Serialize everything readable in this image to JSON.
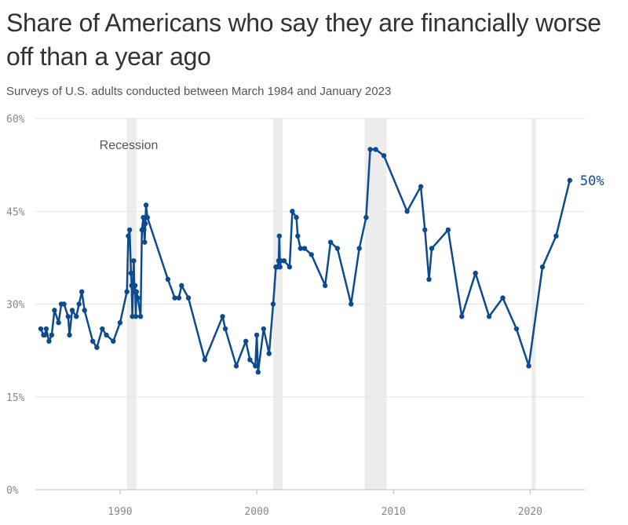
{
  "header": {
    "title": "Share of Americans who say they are financially worse off than a year ago",
    "subtitle": "Surveys of U.S. adults conducted between March 1984 and January 2023"
  },
  "chart_data": {
    "type": "line",
    "title": "Share of Americans who say they are financially worse off than a year ago",
    "subtitle": "Surveys of U.S. adults conducted between March 1984 and January 2023",
    "xlim": [
      1983.8,
      2024.0
    ],
    "ylim": [
      0,
      60
    ],
    "y_ticks": [
      0,
      15,
      30,
      45,
      60
    ],
    "y_tick_labels": [
      "0%",
      "15%",
      "30%",
      "45%",
      "60%"
    ],
    "x_ticks": [
      1990,
      2000,
      2010,
      2020
    ],
    "x_tick_labels": [
      "1990",
      "2000",
      "2010",
      "2020"
    ],
    "grid": true,
    "line_color": "#0d4a8f",
    "recession_color": "#ececec",
    "recession_label": "Recession",
    "recessions": [
      [
        1990.5,
        1991.2
      ],
      [
        2001.2,
        2001.9
      ],
      [
        2007.9,
        2009.5
      ],
      [
        2020.1,
        2020.4
      ]
    ],
    "end_label": "50%",
    "series": [
      {
        "x": [
          1984.2,
          1984.4,
          1984.5,
          1984.6,
          1984.8,
          1985.0,
          1985.2,
          1985.5,
          1985.7,
          1985.9,
          1986.2,
          1986.3,
          1986.5,
          1986.8,
          1987.0,
          1987.2,
          1987.4,
          1988.0,
          1988.3,
          1988.7,
          1989.0,
          1989.5,
          1990.0,
          1990.5,
          1990.6,
          1990.7,
          1990.8,
          1990.85,
          1990.9,
          1991.0,
          1991.05,
          1991.1,
          1991.15,
          1991.2,
          1991.3,
          1991.5,
          1991.6,
          1991.7,
          1991.75,
          1991.8,
          1991.85,
          1991.9,
          1992.0,
          1993.5,
          1994.0,
          1994.3,
          1994.5,
          1995.0,
          1996.2,
          1997.5,
          1997.7,
          1998.5,
          1999.2,
          1999.5,
          1999.9,
          2000.0,
          2000.1,
          2000.5,
          2000.9,
          2001.2,
          2001.4,
          2001.5,
          2001.6,
          2001.65,
          2001.7,
          2001.75,
          2002.0,
          2002.4,
          2002.6,
          2002.9,
          2003.0,
          2003.2,
          2003.5,
          2004.0,
          2005.0,
          2005.4,
          2005.9,
          2006.9,
          2007.5,
          2008.0,
          2008.3,
          2008.7,
          2009.3,
          2011.0,
          2012.0,
          2012.3,
          2012.6,
          2012.8,
          2014.0,
          2015.0,
          2016.0,
          2017.0,
          2018.0,
          2019.0,
          2019.9,
          2020.9,
          2021.9,
          2022.9
        ],
        "y": [
          26,
          25,
          25,
          26,
          24,
          25,
          29,
          27,
          30,
          30,
          28,
          25,
          29,
          28,
          30,
          32,
          29,
          24,
          23,
          26,
          25,
          24,
          27,
          32,
          41,
          42,
          35,
          33,
          28,
          37,
          32,
          33,
          28,
          32,
          31,
          28,
          42,
          44,
          42,
          40,
          43,
          46,
          44,
          34,
          31,
          31,
          33,
          31,
          21,
          28,
          26,
          20,
          24,
          21,
          20,
          25,
          19,
          26,
          22,
          30,
          36,
          36,
          37,
          41,
          36,
          37,
          37,
          36,
          45,
          44,
          41,
          39,
          39,
          38,
          33,
          40,
          39,
          30,
          39,
          44,
          55,
          55,
          54,
          45,
          49,
          42,
          34,
          39,
          42,
          28,
          35,
          28,
          31,
          26,
          20,
          36,
          41,
          50
        ]
      }
    ]
  }
}
